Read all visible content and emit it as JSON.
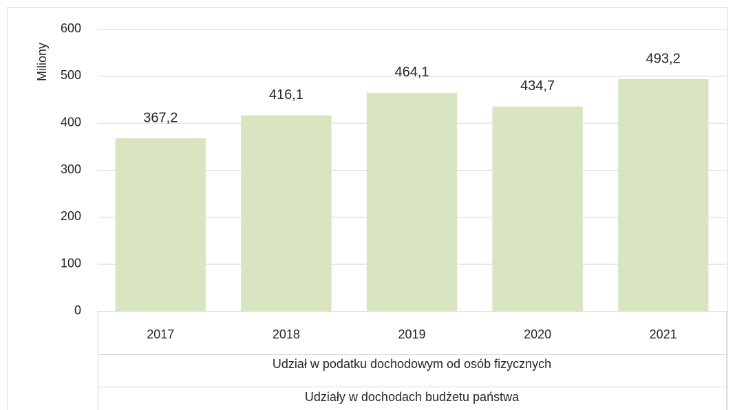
{
  "chart_data": {
    "type": "bar",
    "y_axis_label": "Miliony",
    "categories": [
      "2017",
      "2018",
      "2019",
      "2020",
      "2021"
    ],
    "category_groups": [
      "Udział  w podatku dochodowym od osób fizycznych",
      "Udziały w dochodach budżetu państwa"
    ],
    "values": [
      367.2,
      416.1,
      464.1,
      434.7,
      493.2
    ],
    "value_labels": [
      "367,2",
      "416,1",
      "464,1",
      "434,7",
      "493,2"
    ],
    "color": "#d9e5c1",
    "ylim": [
      0,
      600
    ],
    "yticks": [
      0,
      100,
      200,
      300,
      400,
      500,
      600
    ],
    "grid": true
  }
}
